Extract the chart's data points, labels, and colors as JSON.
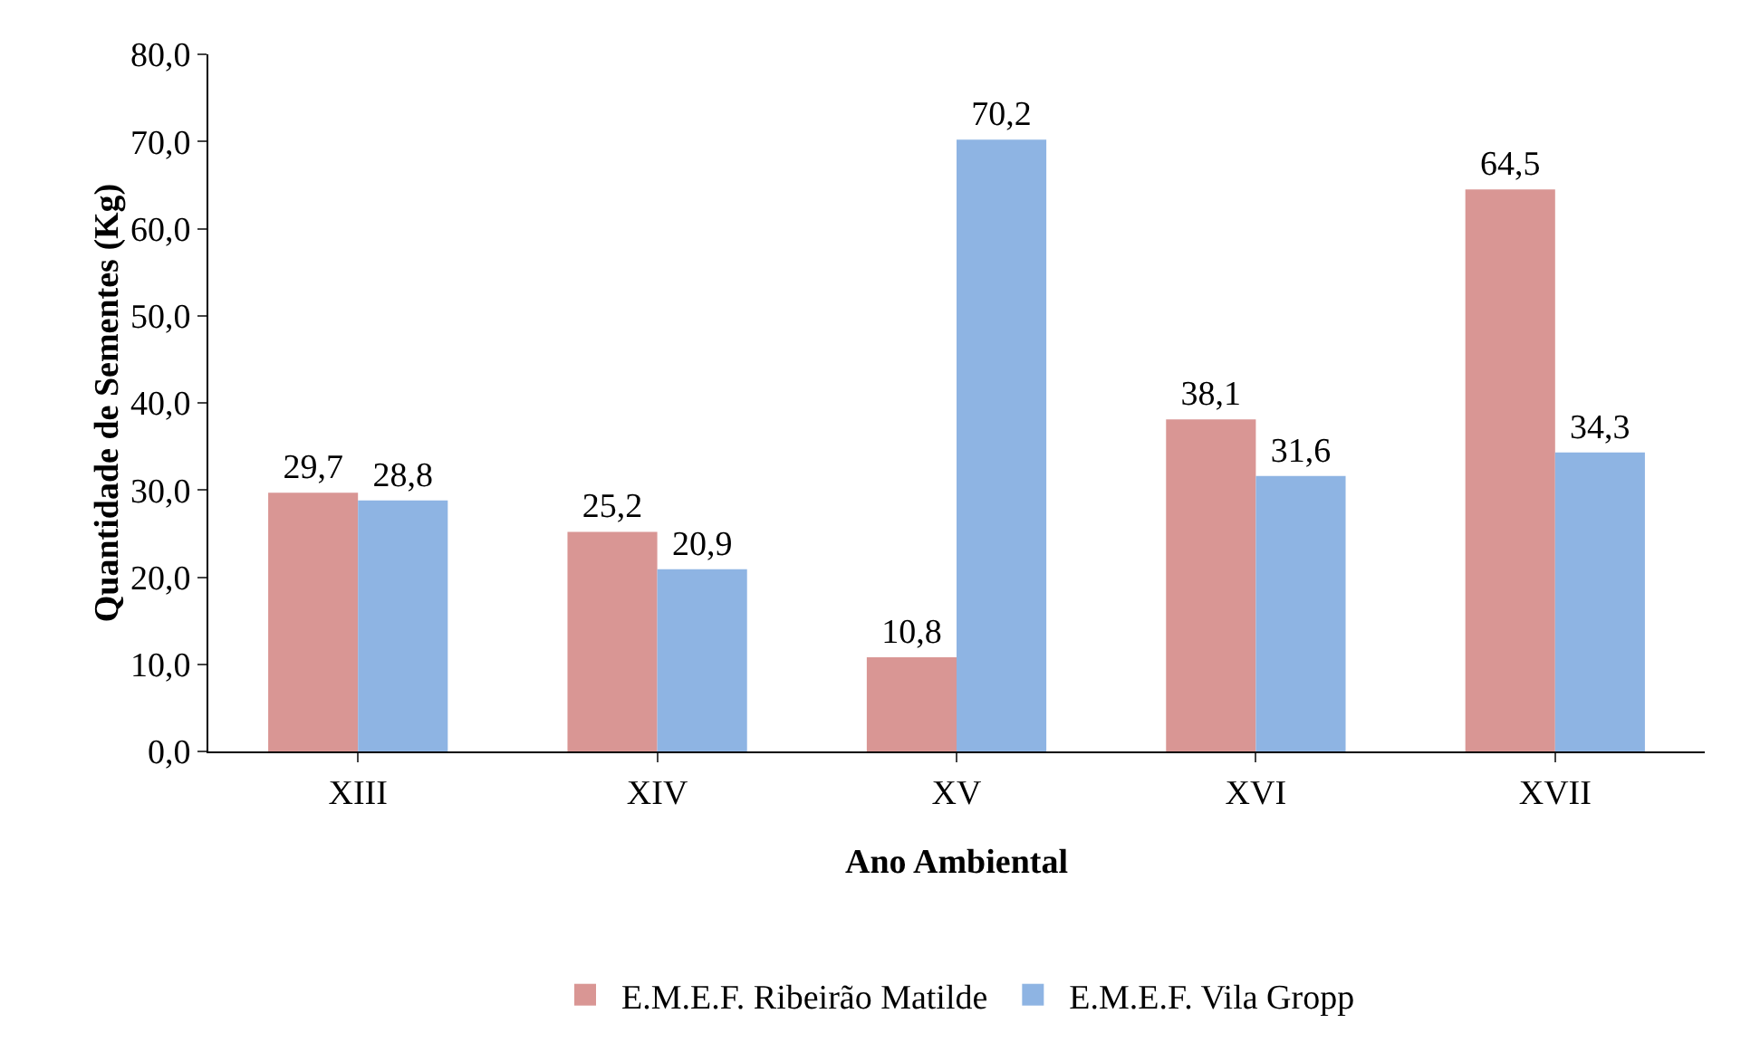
{
  "chart_data": {
    "type": "bar",
    "xlabel": "Ano Ambiental",
    "ylabel": "Quantidade de Sementes (Kg)",
    "categories": [
      "XIII",
      "XIV",
      "XV",
      "XVI",
      "XVII"
    ],
    "series": [
      {
        "name": "E.M.E.F. Ribeirão Matilde",
        "color": "#d99694",
        "values": [
          29.7,
          25.2,
          10.8,
          38.1,
          64.5
        ],
        "value_labels": [
          "29,7",
          "25,2",
          "10,8",
          "38,1",
          "64,5"
        ]
      },
      {
        "name": "E.M.E.F. Vila Gropp",
        "color": "#8eb4e3",
        "values": [
          28.8,
          20.9,
          70.2,
          31.6,
          34.3
        ],
        "value_labels": [
          "28,8",
          "20,9",
          "70,2",
          "31,6",
          "34,3"
        ]
      }
    ],
    "ylim": [
      0,
      80
    ],
    "yticks": [
      {
        "value": 0,
        "label": "0,0"
      },
      {
        "value": 10,
        "label": "10,0"
      },
      {
        "value": 20,
        "label": "20,0"
      },
      {
        "value": 30,
        "label": "30,0"
      },
      {
        "value": 40,
        "label": "40,0"
      },
      {
        "value": 50,
        "label": "50,0"
      },
      {
        "value": 60,
        "label": "60,0"
      },
      {
        "value": 70,
        "label": "70,0"
      },
      {
        "value": 80,
        "label": "80,0"
      }
    ],
    "grid": false,
    "legend": "bottom"
  }
}
